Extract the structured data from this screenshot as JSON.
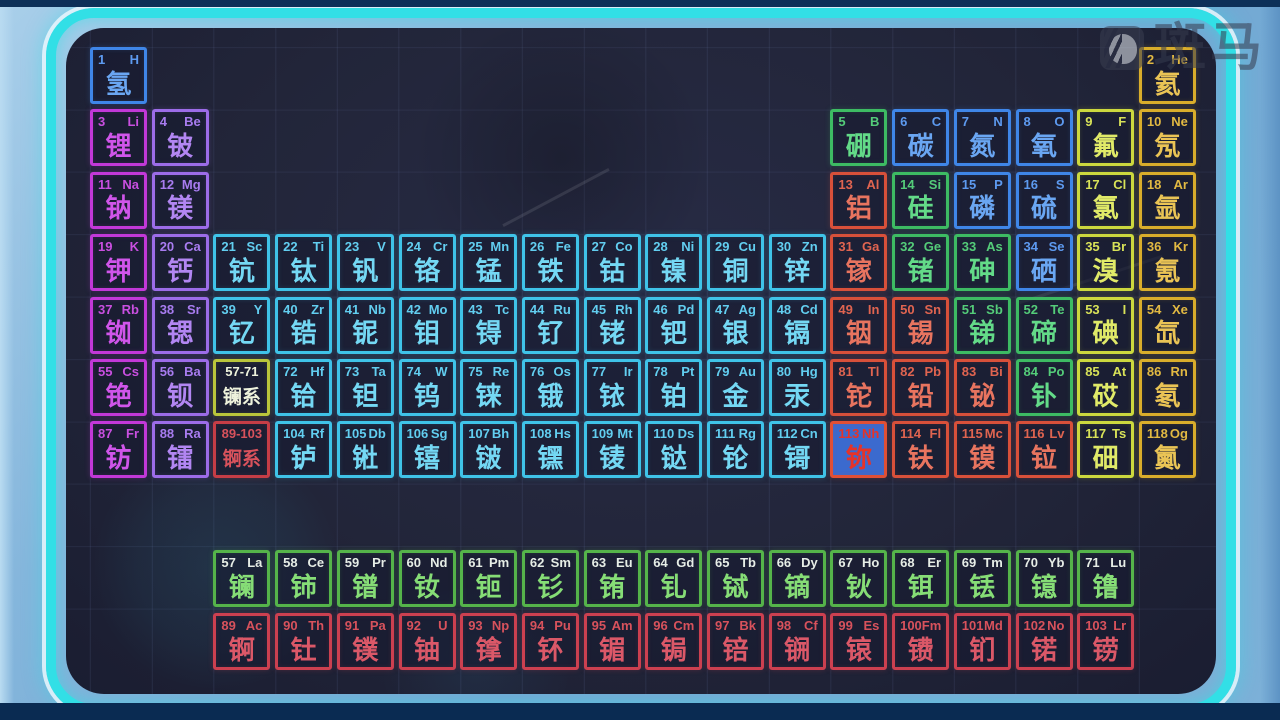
{
  "watermark": {
    "brand_text": "斑马",
    "icon": "zebra-logo-icon"
  },
  "selection": {
    "selected_atomic_number": "113",
    "fill": "#3b6ace"
  },
  "categories": {
    "nonmetal": {
      "border": "#3f86e8",
      "text": "#6aa6f2",
      "num": "#5d9af0"
    },
    "alkali": {
      "border": "#c238d8",
      "text": "#d055ea",
      "num": "#c94fe0"
    },
    "alkaline": {
      "border": "#9c6ce8",
      "text": "#b286f2",
      "num": "#a87cf0"
    },
    "transition": {
      "border": "#3fc3e8",
      "text": "#74d8f4",
      "num": "#62cef0"
    },
    "post": {
      "border": "#d8503a",
      "text": "#e8745f",
      "num": "#e06450"
    },
    "metalloid": {
      "border": "#3dbb63",
      "text": "#63da88",
      "num": "#54cc79"
    },
    "halogen": {
      "border": "#ccd83e",
      "text": "#e0ea68",
      "num": "#d8e258"
    },
    "noble": {
      "border": "#d9ad2b",
      "text": "#eac455",
      "num": "#e2b942"
    },
    "lanthanide": {
      "border": "#55b44a",
      "text": "#86dd76",
      "num": "#e6ede6"
    },
    "actinide": {
      "border": "#cc4050",
      "text": "#db5868",
      "num": "#d8525c"
    },
    "lanph": {
      "border": "#bac53b",
      "text": "#eef2dc",
      "num": "#eef2dc"
    },
    "actph": {
      "border": "#c53d46",
      "text": "#d8525c",
      "num": "#d8525c"
    },
    "selected": {
      "border": "#e04f35",
      "text": "#e63328",
      "num": "#e63328"
    }
  },
  "table": {
    "columns": 18,
    "cells": [
      {
        "num": "1",
        "sym": "H",
        "name": "氢",
        "cat": "nonmetal",
        "row": 1,
        "col": 1
      },
      {
        "num": "2",
        "sym": "He",
        "name": "氦",
        "cat": "noble",
        "row": 1,
        "col": 18
      },
      {
        "num": "3",
        "sym": "Li",
        "name": "锂",
        "cat": "alkali",
        "row": 2,
        "col": 1
      },
      {
        "num": "4",
        "sym": "Be",
        "name": "铍",
        "cat": "alkaline",
        "row": 2,
        "col": 2
      },
      {
        "num": "5",
        "sym": "B",
        "name": "硼",
        "cat": "metalloid",
        "row": 2,
        "col": 13
      },
      {
        "num": "6",
        "sym": "C",
        "name": "碳",
        "cat": "nonmetal",
        "row": 2,
        "col": 14
      },
      {
        "num": "7",
        "sym": "N",
        "name": "氮",
        "cat": "nonmetal",
        "row": 2,
        "col": 15
      },
      {
        "num": "8",
        "sym": "O",
        "name": "氧",
        "cat": "nonmetal",
        "row": 2,
        "col": 16
      },
      {
        "num": "9",
        "sym": "F",
        "name": "氟",
        "cat": "halogen",
        "row": 2,
        "col": 17
      },
      {
        "num": "10",
        "sym": "Ne",
        "name": "氖",
        "cat": "noble",
        "row": 2,
        "col": 18
      },
      {
        "num": "11",
        "sym": "Na",
        "name": "钠",
        "cat": "alkali",
        "row": 3,
        "col": 1
      },
      {
        "num": "12",
        "sym": "Mg",
        "name": "镁",
        "cat": "alkaline",
        "row": 3,
        "col": 2
      },
      {
        "num": "13",
        "sym": "Al",
        "name": "铝",
        "cat": "post",
        "row": 3,
        "col": 13
      },
      {
        "num": "14",
        "sym": "Si",
        "name": "硅",
        "cat": "metalloid",
        "row": 3,
        "col": 14
      },
      {
        "num": "15",
        "sym": "P",
        "name": "磷",
        "cat": "nonmetal",
        "row": 3,
        "col": 15
      },
      {
        "num": "16",
        "sym": "S",
        "name": "硫",
        "cat": "nonmetal",
        "row": 3,
        "col": 16
      },
      {
        "num": "17",
        "sym": "Cl",
        "name": "氯",
        "cat": "halogen",
        "row": 3,
        "col": 17
      },
      {
        "num": "18",
        "sym": "Ar",
        "name": "氩",
        "cat": "noble",
        "row": 3,
        "col": 18
      },
      {
        "num": "19",
        "sym": "K",
        "name": "钾",
        "cat": "alkali",
        "row": 4,
        "col": 1
      },
      {
        "num": "20",
        "sym": "Ca",
        "name": "钙",
        "cat": "alkaline",
        "row": 4,
        "col": 2
      },
      {
        "num": "21",
        "sym": "Sc",
        "name": "钪",
        "cat": "transition",
        "row": 4,
        "col": 3
      },
      {
        "num": "22",
        "sym": "Ti",
        "name": "钛",
        "cat": "transition",
        "row": 4,
        "col": 4
      },
      {
        "num": "23",
        "sym": "V",
        "name": "钒",
        "cat": "transition",
        "row": 4,
        "col": 5
      },
      {
        "num": "24",
        "sym": "Cr",
        "name": "铬",
        "cat": "transition",
        "row": 4,
        "col": 6
      },
      {
        "num": "25",
        "sym": "Mn",
        "name": "锰",
        "cat": "transition",
        "row": 4,
        "col": 7
      },
      {
        "num": "26",
        "sym": "Fe",
        "name": "铁",
        "cat": "transition",
        "row": 4,
        "col": 8
      },
      {
        "num": "27",
        "sym": "Co",
        "name": "钴",
        "cat": "transition",
        "row": 4,
        "col": 9
      },
      {
        "num": "28",
        "sym": "Ni",
        "name": "镍",
        "cat": "transition",
        "row": 4,
        "col": 10
      },
      {
        "num": "29",
        "sym": "Cu",
        "name": "铜",
        "cat": "transition",
        "row": 4,
        "col": 11
      },
      {
        "num": "30",
        "sym": "Zn",
        "name": "锌",
        "cat": "transition",
        "row": 4,
        "col": 12
      },
      {
        "num": "31",
        "sym": "Ga",
        "name": "镓",
        "cat": "post",
        "row": 4,
        "col": 13
      },
      {
        "num": "32",
        "sym": "Ge",
        "name": "锗",
        "cat": "metalloid",
        "row": 4,
        "col": 14
      },
      {
        "num": "33",
        "sym": "As",
        "name": "砷",
        "cat": "metalloid",
        "row": 4,
        "col": 15
      },
      {
        "num": "34",
        "sym": "Se",
        "name": "硒",
        "cat": "nonmetal",
        "row": 4,
        "col": 16
      },
      {
        "num": "35",
        "sym": "Br",
        "name": "溴",
        "cat": "halogen",
        "row": 4,
        "col": 17
      },
      {
        "num": "36",
        "sym": "Kr",
        "name": "氪",
        "cat": "noble",
        "row": 4,
        "col": 18
      },
      {
        "num": "37",
        "sym": "Rb",
        "name": "铷",
        "cat": "alkali",
        "row": 5,
        "col": 1
      },
      {
        "num": "38",
        "sym": "Sr",
        "name": "锶",
        "cat": "alkaline",
        "row": 5,
        "col": 2
      },
      {
        "num": "39",
        "sym": "Y",
        "name": "钇",
        "cat": "transition",
        "row": 5,
        "col": 3
      },
      {
        "num": "40",
        "sym": "Zr",
        "name": "锆",
        "cat": "transition",
        "row": 5,
        "col": 4
      },
      {
        "num": "41",
        "sym": "Nb",
        "name": "铌",
        "cat": "transition",
        "row": 5,
        "col": 5
      },
      {
        "num": "42",
        "sym": "Mo",
        "name": "钼",
        "cat": "transition",
        "row": 5,
        "col": 6
      },
      {
        "num": "43",
        "sym": "Tc",
        "name": "锝",
        "cat": "transition",
        "row": 5,
        "col": 7
      },
      {
        "num": "44",
        "sym": "Ru",
        "name": "钌",
        "cat": "transition",
        "row": 5,
        "col": 8
      },
      {
        "num": "45",
        "sym": "Rh",
        "name": "铑",
        "cat": "transition",
        "row": 5,
        "col": 9
      },
      {
        "num": "46",
        "sym": "Pd",
        "name": "钯",
        "cat": "transition",
        "row": 5,
        "col": 10
      },
      {
        "num": "47",
        "sym": "Ag",
        "name": "银",
        "cat": "transition",
        "row": 5,
        "col": 11
      },
      {
        "num": "48",
        "sym": "Cd",
        "name": "镉",
        "cat": "transition",
        "row": 5,
        "col": 12
      },
      {
        "num": "49",
        "sym": "In",
        "name": "铟",
        "cat": "post",
        "row": 5,
        "col": 13
      },
      {
        "num": "50",
        "sym": "Sn",
        "name": "锡",
        "cat": "post",
        "row": 5,
        "col": 14
      },
      {
        "num": "51",
        "sym": "Sb",
        "name": "锑",
        "cat": "metalloid",
        "row": 5,
        "col": 15
      },
      {
        "num": "52",
        "sym": "Te",
        "name": "碲",
        "cat": "metalloid",
        "row": 5,
        "col": 16
      },
      {
        "num": "53",
        "sym": "I",
        "name": "碘",
        "cat": "halogen",
        "row": 5,
        "col": 17
      },
      {
        "num": "54",
        "sym": "Xe",
        "name": "氙",
        "cat": "noble",
        "row": 5,
        "col": 18
      },
      {
        "num": "55",
        "sym": "Cs",
        "name": "铯",
        "cat": "alkali",
        "row": 6,
        "col": 1
      },
      {
        "num": "56",
        "sym": "Ba",
        "name": "钡",
        "cat": "alkaline",
        "row": 6,
        "col": 2
      },
      {
        "num": "57-71",
        "sym": "",
        "name": "镧系",
        "cat": "lanph",
        "row": 6,
        "col": 3,
        "placeholder": true
      },
      {
        "num": "72",
        "sym": "Hf",
        "name": "铪",
        "cat": "transition",
        "row": 6,
        "col": 4
      },
      {
        "num": "73",
        "sym": "Ta",
        "name": "钽",
        "cat": "transition",
        "row": 6,
        "col": 5
      },
      {
        "num": "74",
        "sym": "W",
        "name": "钨",
        "cat": "transition",
        "row": 6,
        "col": 6
      },
      {
        "num": "75",
        "sym": "Re",
        "name": "铼",
        "cat": "transition",
        "row": 6,
        "col": 7
      },
      {
        "num": "76",
        "sym": "Os",
        "name": "锇",
        "cat": "transition",
        "row": 6,
        "col": 8
      },
      {
        "num": "77",
        "sym": "Ir",
        "name": "铱",
        "cat": "transition",
        "row": 6,
        "col": 9
      },
      {
        "num": "78",
        "sym": "Pt",
        "name": "铂",
        "cat": "transition",
        "row": 6,
        "col": 10
      },
      {
        "num": "79",
        "sym": "Au",
        "name": "金",
        "cat": "transition",
        "row": 6,
        "col": 11
      },
      {
        "num": "80",
        "sym": "Hg",
        "name": "汞",
        "cat": "transition",
        "row": 6,
        "col": 12
      },
      {
        "num": "81",
        "sym": "Tl",
        "name": "铊",
        "cat": "post",
        "row": 6,
        "col": 13
      },
      {
        "num": "82",
        "sym": "Pb",
        "name": "铅",
        "cat": "post",
        "row": 6,
        "col": 14
      },
      {
        "num": "83",
        "sym": "Bi",
        "name": "铋",
        "cat": "post",
        "row": 6,
        "col": 15
      },
      {
        "num": "84",
        "sym": "Po",
        "name": "钋",
        "cat": "metalloid",
        "row": 6,
        "col": 16
      },
      {
        "num": "85",
        "sym": "At",
        "name": "砹",
        "cat": "halogen",
        "row": 6,
        "col": 17
      },
      {
        "num": "86",
        "sym": "Rn",
        "name": "氡",
        "cat": "noble",
        "row": 6,
        "col": 18
      },
      {
        "num": "87",
        "sym": "Fr",
        "name": "钫",
        "cat": "alkali",
        "row": 7,
        "col": 1
      },
      {
        "num": "88",
        "sym": "Ra",
        "name": "镭",
        "cat": "alkaline",
        "row": 7,
        "col": 2
      },
      {
        "num": "89-103",
        "sym": "",
        "name": "锕系",
        "cat": "actph",
        "row": 7,
        "col": 3,
        "placeholder": true
      },
      {
        "num": "104",
        "sym": "Rf",
        "name": "𬬻",
        "cat": "transition",
        "row": 7,
        "col": 4
      },
      {
        "num": "105",
        "sym": "Db",
        "name": "𬭊",
        "cat": "transition",
        "row": 7,
        "col": 5
      },
      {
        "num": "106",
        "sym": "Sg",
        "name": "𬭳",
        "cat": "transition",
        "row": 7,
        "col": 6
      },
      {
        "num": "107",
        "sym": "Bh",
        "name": "𬭛",
        "cat": "transition",
        "row": 7,
        "col": 7
      },
      {
        "num": "108",
        "sym": "Hs",
        "name": "𬭶",
        "cat": "transition",
        "row": 7,
        "col": 8
      },
      {
        "num": "109",
        "sym": "Mt",
        "name": "鿏",
        "cat": "transition",
        "row": 7,
        "col": 9
      },
      {
        "num": "110",
        "sym": "Ds",
        "name": "𫟼",
        "cat": "transition",
        "row": 7,
        "col": 10
      },
      {
        "num": "111",
        "sym": "Rg",
        "name": "𬬭",
        "cat": "transition",
        "row": 7,
        "col": 11
      },
      {
        "num": "112",
        "sym": "Cn",
        "name": "鿔",
        "cat": "transition",
        "row": 7,
        "col": 12
      },
      {
        "num": "113",
        "sym": "Nh",
        "name": "鿭",
        "cat": "post",
        "row": 7,
        "col": 13,
        "selected": true
      },
      {
        "num": "114",
        "sym": "Fl",
        "name": "𫓧",
        "cat": "post",
        "row": 7,
        "col": 14
      },
      {
        "num": "115",
        "sym": "Mc",
        "name": "镆",
        "cat": "post",
        "row": 7,
        "col": 15
      },
      {
        "num": "116",
        "sym": "Lv",
        "name": "𫟷",
        "cat": "post",
        "row": 7,
        "col": 16
      },
      {
        "num": "117",
        "sym": "Ts",
        "name": "鿬",
        "cat": "halogen",
        "row": 7,
        "col": 17
      },
      {
        "num": "118",
        "sym": "Og",
        "name": "鿫",
        "cat": "noble",
        "row": 7,
        "col": 18
      },
      {
        "num": "57",
        "sym": "La",
        "name": "镧",
        "cat": "lanthanide",
        "row": "L",
        "col": 3
      },
      {
        "num": "58",
        "sym": "Ce",
        "name": "铈",
        "cat": "lanthanide",
        "row": "L",
        "col": 4
      },
      {
        "num": "59",
        "sym": "Pr",
        "name": "镨",
        "cat": "lanthanide",
        "row": "L",
        "col": 5
      },
      {
        "num": "60",
        "sym": "Nd",
        "name": "钕",
        "cat": "lanthanide",
        "row": "L",
        "col": 6
      },
      {
        "num": "61",
        "sym": "Pm",
        "name": "钷",
        "cat": "lanthanide",
        "row": "L",
        "col": 7
      },
      {
        "num": "62",
        "sym": "Sm",
        "name": "钐",
        "cat": "lanthanide",
        "row": "L",
        "col": 8
      },
      {
        "num": "63",
        "sym": "Eu",
        "name": "铕",
        "cat": "lanthanide",
        "row": "L",
        "col": 9
      },
      {
        "num": "64",
        "sym": "Gd",
        "name": "钆",
        "cat": "lanthanide",
        "row": "L",
        "col": 10
      },
      {
        "num": "65",
        "sym": "Tb",
        "name": "铽",
        "cat": "lanthanide",
        "row": "L",
        "col": 11
      },
      {
        "num": "66",
        "sym": "Dy",
        "name": "镝",
        "cat": "lanthanide",
        "row": "L",
        "col": 12
      },
      {
        "num": "67",
        "sym": "Ho",
        "name": "钬",
        "cat": "lanthanide",
        "row": "L",
        "col": 13
      },
      {
        "num": "68",
        "sym": "Er",
        "name": "铒",
        "cat": "lanthanide",
        "row": "L",
        "col": 14
      },
      {
        "num": "69",
        "sym": "Tm",
        "name": "铥",
        "cat": "lanthanide",
        "row": "L",
        "col": 15
      },
      {
        "num": "70",
        "sym": "Yb",
        "name": "镱",
        "cat": "lanthanide",
        "row": "L",
        "col": 16
      },
      {
        "num": "71",
        "sym": "Lu",
        "name": "镥",
        "cat": "lanthanide",
        "row": "L",
        "col": 17
      },
      {
        "num": "89",
        "sym": "Ac",
        "name": "锕",
        "cat": "actinide",
        "row": "A",
        "col": 3
      },
      {
        "num": "90",
        "sym": "Th",
        "name": "钍",
        "cat": "actinide",
        "row": "A",
        "col": 4
      },
      {
        "num": "91",
        "sym": "Pa",
        "name": "镤",
        "cat": "actinide",
        "row": "A",
        "col": 5
      },
      {
        "num": "92",
        "sym": "U",
        "name": "铀",
        "cat": "actinide",
        "row": "A",
        "col": 6
      },
      {
        "num": "93",
        "sym": "Np",
        "name": "镎",
        "cat": "actinide",
        "row": "A",
        "col": 7
      },
      {
        "num": "94",
        "sym": "Pu",
        "name": "钚",
        "cat": "actinide",
        "row": "A",
        "col": 8
      },
      {
        "num": "95",
        "sym": "Am",
        "name": "镅",
        "cat": "actinide",
        "row": "A",
        "col": 9
      },
      {
        "num": "96",
        "sym": "Cm",
        "name": "锔",
        "cat": "actinide",
        "row": "A",
        "col": 10
      },
      {
        "num": "97",
        "sym": "Bk",
        "name": "锫",
        "cat": "actinide",
        "row": "A",
        "col": 11
      },
      {
        "num": "98",
        "sym": "Cf",
        "name": "锎",
        "cat": "actinide",
        "row": "A",
        "col": 12
      },
      {
        "num": "99",
        "sym": "Es",
        "name": "锿",
        "cat": "actinide",
        "row": "A",
        "col": 13
      },
      {
        "num": "100",
        "sym": "Fm",
        "name": "镄",
        "cat": "actinide",
        "row": "A",
        "col": 14
      },
      {
        "num": "101",
        "sym": "Md",
        "name": "钔",
        "cat": "actinide",
        "row": "A",
        "col": 15
      },
      {
        "num": "102",
        "sym": "No",
        "name": "锘",
        "cat": "actinide",
        "row": "A",
        "col": 16
      },
      {
        "num": "103",
        "sym": "Lr",
        "name": "铹",
        "cat": "actinide",
        "row": "A",
        "col": 17
      }
    ]
  }
}
